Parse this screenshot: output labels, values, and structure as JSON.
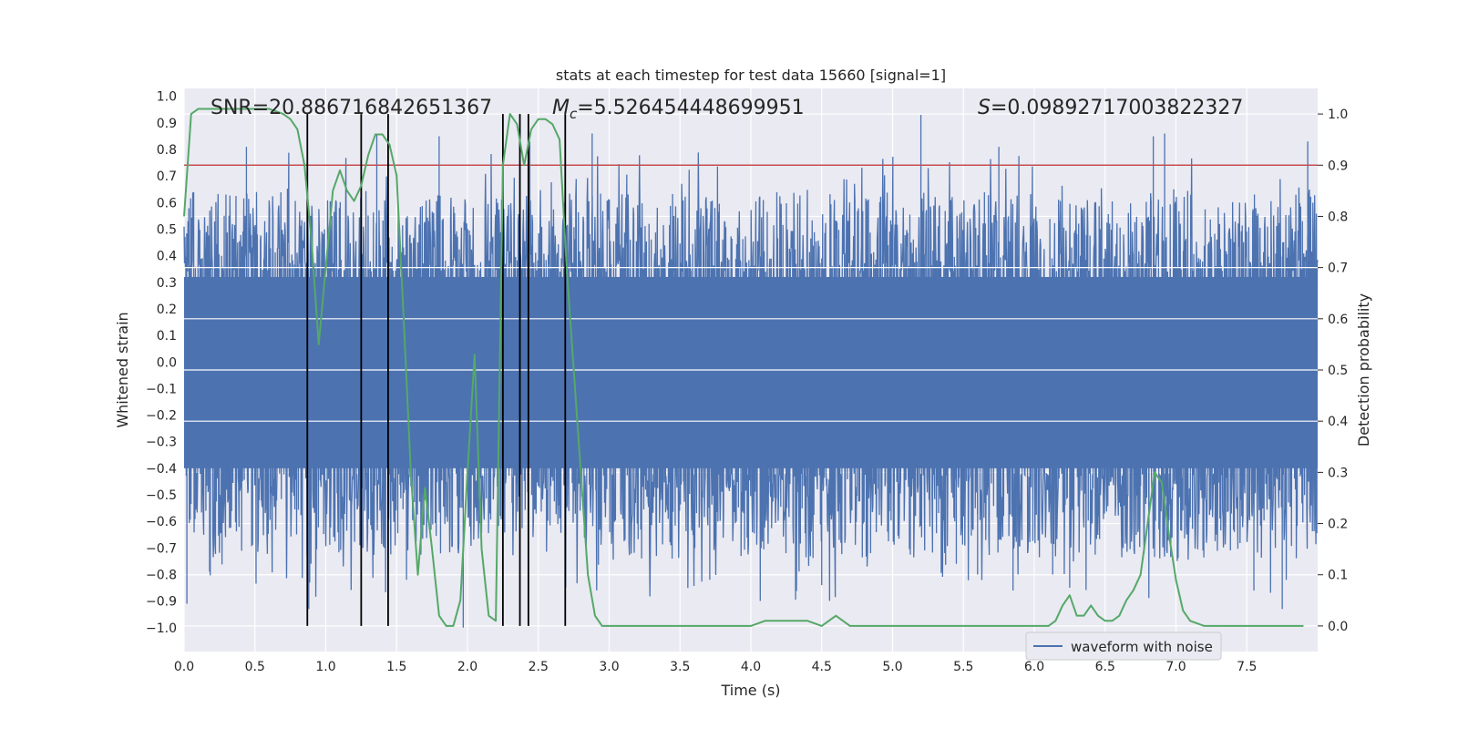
{
  "chart_data": {
    "type": "line",
    "title": "stats at each timestep for test data 15660 [signal=1]",
    "xlabel": "Time (s)",
    "ylabel": "Whitened strain",
    "y2label": "Detection probability",
    "xlim": [
      0.0,
      8.0
    ],
    "ylim": [
      -1.09,
      1.03
    ],
    "y2lim": [
      -0.05,
      1.05
    ],
    "xticks": [
      "0.0",
      "0.5",
      "1.0",
      "1.5",
      "2.0",
      "2.5",
      "3.0",
      "3.5",
      "4.0",
      "4.5",
      "5.0",
      "5.5",
      "6.0",
      "6.5",
      "7.0",
      "7.5"
    ],
    "yticks": [
      "1.0",
      "0.9",
      "0.8",
      "0.7",
      "0.6",
      "0.5",
      "0.4",
      "0.3",
      "0.2",
      "0.1",
      "0.0",
      "-0.1",
      "-0.2",
      "-0.3",
      "-0.4",
      "-0.5",
      "-0.6",
      "-0.7",
      "-0.8",
      "-0.9",
      "-1.0"
    ],
    "y2ticks": [
      "0.0",
      "0.1",
      "0.2",
      "0.3",
      "0.4",
      "0.5",
      "0.6",
      "0.7",
      "0.8",
      "0.9",
      "1.0"
    ],
    "annotations": {
      "snr": "SNR=20.886716842651367",
      "mc_symbol": "M",
      "mc_sub": "c",
      "mc_value": "=5.526454448699951",
      "s_symbol": "S",
      "s_value": "=0.09892717003822327"
    },
    "legend": {
      "label": "waveform with noise",
      "location": "lower-right"
    },
    "threshold": {
      "axis": "right",
      "value": 0.9,
      "color": "#c44e52"
    },
    "event_lines": [
      0.87,
      1.25,
      1.44,
      2.25,
      2.37,
      2.43,
      2.69
    ],
    "series": [
      {
        "name": "waveform with noise",
        "axis": "left",
        "color": "#4c72b0",
        "description": "dense whitened strain noise, band roughly -0.45 to 0.35 with spikes up to about 0.93 and down to about -1.0",
        "core_range": [
          -0.42,
          0.34
        ],
        "spikes": [
          {
            "x": 0.02,
            "y": -0.91
          },
          {
            "x": 0.18,
            "y": -0.79
          },
          {
            "x": 0.44,
            "y": 0.81
          },
          {
            "x": 0.88,
            "y": -0.93
          },
          {
            "x": 1.36,
            "y": 0.86
          },
          {
            "x": 1.8,
            "y": 0.85
          },
          {
            "x": 1.97,
            "y": -1.0
          },
          {
            "x": 2.44,
            "y": 0.83
          },
          {
            "x": 2.88,
            "y": 0.86
          },
          {
            "x": 3.71,
            "y": -0.82
          },
          {
            "x": 4.5,
            "y": -0.84
          },
          {
            "x": 5.2,
            "y": 0.93
          },
          {
            "x": 5.45,
            "y": -0.76
          },
          {
            "x": 5.6,
            "y": -0.8
          },
          {
            "x": 5.75,
            "y": 0.81
          },
          {
            "x": 5.85,
            "y": -0.86
          },
          {
            "x": 6.13,
            "y": -0.8
          },
          {
            "x": 6.25,
            "y": -0.85
          },
          {
            "x": 6.84,
            "y": 0.85
          },
          {
            "x": 6.92,
            "y": 0.86
          },
          {
            "x": 7.55,
            "y": -0.86
          },
          {
            "x": 7.75,
            "y": -0.93
          },
          {
            "x": 7.93,
            "y": 0.83
          }
        ]
      },
      {
        "name": "detection probability",
        "axis": "right",
        "color": "#55a868",
        "x": [
          0.0,
          0.05,
          0.1,
          0.2,
          0.3,
          0.4,
          0.5,
          0.6,
          0.7,
          0.75,
          0.8,
          0.85,
          0.9,
          0.95,
          1.0,
          1.05,
          1.1,
          1.15,
          1.2,
          1.25,
          1.3,
          1.35,
          1.4,
          1.45,
          1.5,
          1.55,
          1.6,
          1.65,
          1.7,
          1.75,
          1.8,
          1.85,
          1.9,
          1.95,
          2.0,
          2.05,
          2.1,
          2.15,
          2.2,
          2.25,
          2.3,
          2.35,
          2.4,
          2.45,
          2.5,
          2.55,
          2.6,
          2.65,
          2.7,
          2.75,
          2.8,
          2.85,
          2.9,
          2.95,
          3.0,
          3.2,
          3.5,
          3.8,
          4.0,
          4.1,
          4.2,
          4.3,
          4.4,
          4.5,
          4.6,
          4.7,
          4.8,
          4.9,
          5.0,
          5.5,
          5.8,
          6.0,
          6.1,
          6.15,
          6.2,
          6.25,
          6.3,
          6.35,
          6.4,
          6.45,
          6.5,
          6.55,
          6.6,
          6.65,
          6.7,
          6.75,
          6.8,
          6.85,
          6.9,
          6.95,
          7.0,
          7.05,
          7.1,
          7.2,
          7.3,
          7.5,
          7.7,
          7.9
        ],
        "y": [
          0.8,
          1.0,
          1.01,
          1.01,
          1.01,
          1.01,
          1.01,
          1.01,
          1.0,
          0.99,
          0.97,
          0.9,
          0.75,
          0.55,
          0.7,
          0.85,
          0.89,
          0.85,
          0.83,
          0.86,
          0.92,
          0.96,
          0.96,
          0.94,
          0.88,
          0.6,
          0.3,
          0.1,
          0.27,
          0.15,
          0.02,
          0.0,
          0.0,
          0.05,
          0.3,
          0.53,
          0.15,
          0.02,
          0.01,
          0.9,
          1.0,
          0.98,
          0.9,
          0.97,
          0.99,
          0.99,
          0.98,
          0.95,
          0.7,
          0.5,
          0.3,
          0.1,
          0.02,
          0.0,
          0.0,
          0.0,
          0.0,
          0.0,
          0.0,
          0.01,
          0.01,
          0.01,
          0.01,
          0.0,
          0.02,
          0.0,
          0.0,
          0.0,
          0.0,
          0.0,
          0.0,
          0.0,
          0.0,
          0.01,
          0.04,
          0.06,
          0.02,
          0.02,
          0.04,
          0.02,
          0.01,
          0.01,
          0.02,
          0.05,
          0.07,
          0.1,
          0.2,
          0.3,
          0.28,
          0.18,
          0.09,
          0.03,
          0.01,
          0.0,
          0.0,
          0.0,
          0.0,
          0.0
        ]
      }
    ]
  }
}
